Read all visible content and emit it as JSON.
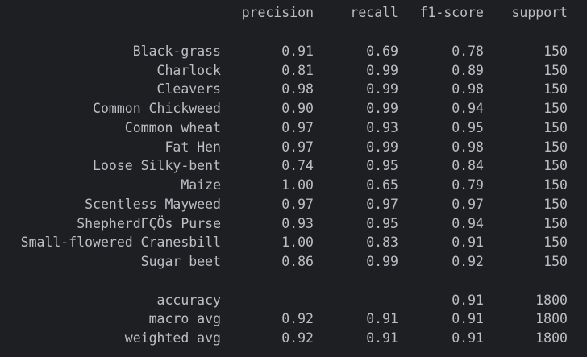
{
  "header": {
    "precision": "precision",
    "recall": "recall",
    "f1": "f1-score",
    "support": "support"
  },
  "classes": [
    {
      "label": "Black-grass",
      "precision": "0.91",
      "recall": "0.69",
      "f1": "0.78",
      "support": "150"
    },
    {
      "label": "Charlock",
      "precision": "0.81",
      "recall": "0.99",
      "f1": "0.89",
      "support": "150"
    },
    {
      "label": "Cleavers",
      "precision": "0.98",
      "recall": "0.99",
      "f1": "0.98",
      "support": "150"
    },
    {
      "label": "Common Chickweed",
      "precision": "0.90",
      "recall": "0.99",
      "f1": "0.94",
      "support": "150"
    },
    {
      "label": "Common wheat",
      "precision": "0.97",
      "recall": "0.93",
      "f1": "0.95",
      "support": "150"
    },
    {
      "label": "Fat Hen",
      "precision": "0.97",
      "recall": "0.99",
      "f1": "0.98",
      "support": "150"
    },
    {
      "label": "Loose Silky-bent",
      "precision": "0.74",
      "recall": "0.95",
      "f1": "0.84",
      "support": "150"
    },
    {
      "label": "Maize",
      "precision": "1.00",
      "recall": "0.65",
      "f1": "0.79",
      "support": "150"
    },
    {
      "label": "Scentless Mayweed",
      "precision": "0.97",
      "recall": "0.97",
      "f1": "0.97",
      "support": "150"
    },
    {
      "label": "ShepherdΓÇÖs Purse",
      "precision": "0.93",
      "recall": "0.95",
      "f1": "0.94",
      "support": "150"
    },
    {
      "label": "Small-flowered Cranesbill",
      "precision": "1.00",
      "recall": "0.83",
      "f1": "0.91",
      "support": "150"
    },
    {
      "label": "Sugar beet",
      "precision": "0.86",
      "recall": "0.99",
      "f1": "0.92",
      "support": "150"
    }
  ],
  "summary": [
    {
      "label": "accuracy",
      "precision": "",
      "recall": "",
      "f1": "0.91",
      "support": "1800"
    },
    {
      "label": "macro avg",
      "precision": "0.92",
      "recall": "0.91",
      "f1": "0.91",
      "support": "1800"
    },
    {
      "label": "weighted avg",
      "precision": "0.92",
      "recall": "0.91",
      "f1": "0.91",
      "support": "1800"
    }
  ]
}
